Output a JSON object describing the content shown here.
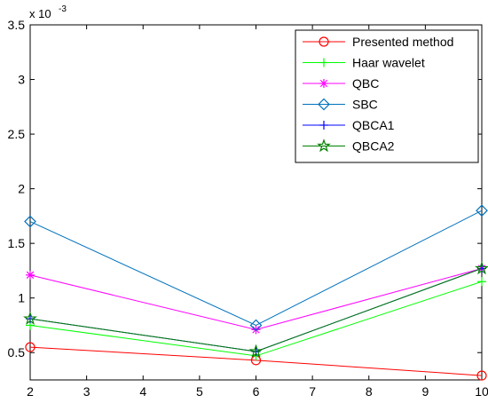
{
  "chart_data": {
    "type": "line",
    "title": "",
    "xlabel": "",
    "ylabel": "",
    "x": [
      2,
      6,
      10
    ],
    "xlim": [
      2,
      10
    ],
    "ylim": [
      0.25,
      3.5
    ],
    "xticks": [
      "2",
      "3",
      "4",
      "5",
      "6",
      "7",
      "8",
      "9",
      "10"
    ],
    "yticks": [
      "0.5",
      "1",
      "1.5",
      "2",
      "2.5",
      "3",
      "3.5"
    ],
    "y_exponent_base": "x 10",
    "y_exponent_power": "-3",
    "grid": false,
    "legend_position": "top-right",
    "series": [
      {
        "name": "Presented method",
        "values": [
          0.55,
          0.43,
          0.29
        ],
        "color": "#ff0000",
        "marker": "circle"
      },
      {
        "name": "Haar wavelet",
        "values": [
          0.75,
          0.47,
          1.15
        ],
        "color": "#00ff00",
        "marker": "plus"
      },
      {
        "name": "QBC",
        "values": [
          1.21,
          0.71,
          1.27
        ],
        "color": "#ff00ff",
        "marker": "asterisk"
      },
      {
        "name": "SBC",
        "values": [
          1.7,
          0.75,
          1.8
        ],
        "color": "#0072bd",
        "marker": "diamond"
      },
      {
        "name": "QBCA1",
        "values": [
          0.81,
          0.51,
          1.27
        ],
        "color": "#0000ff",
        "marker": "plus"
      },
      {
        "name": "QBCA2",
        "values": [
          0.81,
          0.51,
          1.27
        ],
        "color": "#008000",
        "marker": "pentagram"
      }
    ]
  }
}
